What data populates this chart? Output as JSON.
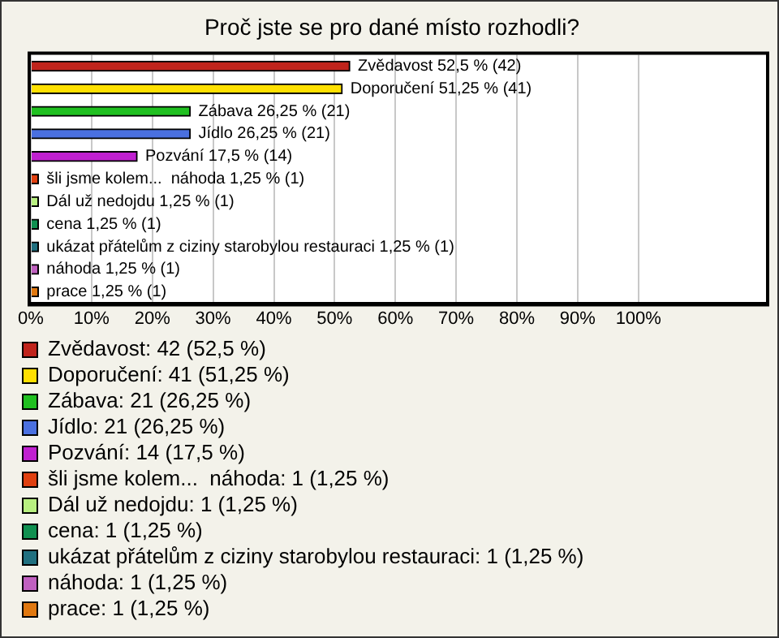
{
  "chart_data": {
    "type": "bar",
    "orientation": "horizontal",
    "stacked": true,
    "title": "Proč jste se pro dané místo rozhodli?",
    "categories": [
      null,
      null,
      null,
      null,
      null,
      null,
      null,
      null,
      null,
      null,
      null
    ],
    "series": [
      {
        "name": "Zvědavost: 42 (52,5 %)",
        "color": "#c0241c",
        "values": [
          52.5,
          null,
          null,
          null,
          null,
          null,
          null,
          null,
          null,
          null,
          null
        ],
        "value_labels": [
          "Zvědavost 52,5 % (42)",
          null,
          null,
          null,
          null,
          null,
          null,
          null,
          null,
          null,
          null
        ]
      },
      {
        "name": "Doporučení: 41 (51,25 %)",
        "color": "#ffe000",
        "values": [
          null,
          51.25,
          null,
          null,
          null,
          null,
          null,
          null,
          null,
          null,
          null
        ],
        "value_labels": [
          null,
          "Doporučení 51,25 % (41)",
          null,
          null,
          null,
          null,
          null,
          null,
          null,
          null,
          null
        ]
      },
      {
        "name": "Zábava: 21 (26,25 %)",
        "color": "#20c020",
        "values": [
          null,
          null,
          26.25,
          null,
          null,
          null,
          null,
          null,
          null,
          null,
          null
        ],
        "value_labels": [
          null,
          null,
          "Zábava 26,25 % (21)",
          null,
          null,
          null,
          null,
          null,
          null,
          null,
          null
        ]
      },
      {
        "name": "Jídlo: 21 (26,25 %)",
        "color": "#4a70e0",
        "values": [
          null,
          null,
          null,
          26.25,
          null,
          null,
          null,
          null,
          null,
          null,
          null
        ],
        "value_labels": [
          null,
          null,
          null,
          "Jídlo 26,25 % (21)",
          null,
          null,
          null,
          null,
          null,
          null,
          null
        ]
      },
      {
        "name": "Pozvání: 14 (17,5 %)",
        "color": "#c020d0",
        "values": [
          null,
          null,
          null,
          null,
          17.5,
          null,
          null,
          null,
          null,
          null,
          null
        ],
        "value_labels": [
          null,
          null,
          null,
          null,
          "Pozvání 17,5 % (14)",
          null,
          null,
          null,
          null,
          null,
          null
        ]
      },
      {
        "name": "šli jsme kolem...  náhoda: 1 (1,25 %)",
        "color": "#e04010",
        "values": [
          null,
          null,
          null,
          null,
          null,
          1.25,
          null,
          null,
          null,
          null,
          null
        ],
        "value_labels": [
          null,
          null,
          null,
          null,
          null,
          "šli jsme kolem...  náhoda 1,25 % (1)",
          null,
          null,
          null,
          null,
          null
        ]
      },
      {
        "name": "Dál už nedojdu: 1 (1,25 %)",
        "color": "#b8f080",
        "values": [
          null,
          null,
          null,
          null,
          null,
          null,
          1.25,
          null,
          null,
          null,
          null
        ],
        "value_labels": [
          null,
          null,
          null,
          null,
          null,
          null,
          "Dál už nedojdu 1,25 % (1)",
          null,
          null,
          null,
          null
        ]
      },
      {
        "name": "cena: 1 (1,25 %)",
        "color": "#109050",
        "values": [
          null,
          null,
          null,
          null,
          null,
          null,
          null,
          1.25,
          null,
          null,
          null
        ],
        "value_labels": [
          null,
          null,
          null,
          null,
          null,
          null,
          null,
          "cena 1,25 % (1)",
          null,
          null,
          null
        ]
      },
      {
        "name": "ukázat přátelům z ciziny starobylou restauraci: 1 (1,25 %)",
        "color": "#207080",
        "values": [
          null,
          null,
          null,
          null,
          null,
          null,
          null,
          null,
          1.25,
          null,
          null
        ],
        "value_labels": [
          null,
          null,
          null,
          null,
          null,
          null,
          null,
          null,
          "ukázat přátelům z ciziny starobylou restauraci 1,25 % (1)",
          null,
          null
        ]
      },
      {
        "name": "náhoda: 1 (1,25 %)",
        "color": "#c060c0",
        "values": [
          null,
          null,
          null,
          null,
          null,
          null,
          null,
          null,
          null,
          1.25,
          null
        ],
        "value_labels": [
          null,
          null,
          null,
          null,
          null,
          null,
          null,
          null,
          null,
          "náhoda 1,25 % (1)",
          null
        ]
      },
      {
        "name": "prace: 1 (1,25 %)",
        "color": "#e07810",
        "values": [
          null,
          null,
          null,
          null,
          null,
          null,
          null,
          null,
          null,
          null,
          1.25
        ],
        "value_labels": [
          null,
          null,
          null,
          null,
          null,
          null,
          null,
          null,
          null,
          null,
          "prace 1,25 % (1)"
        ]
      }
    ],
    "xlim": [
      0,
      121
    ],
    "xticks": [
      {
        "value": 0,
        "label": "0%"
      },
      {
        "value": 10,
        "label": "10%"
      },
      {
        "value": 20,
        "label": "20%"
      },
      {
        "value": 30,
        "label": "30%"
      },
      {
        "value": 40,
        "label": "40%"
      },
      {
        "value": 50,
        "label": "50%"
      },
      {
        "value": 60,
        "label": "60%"
      },
      {
        "value": 70,
        "label": "70%"
      },
      {
        "value": 80,
        "label": "80%"
      },
      {
        "value": 90,
        "label": "90%"
      },
      {
        "value": 100,
        "label": "100%"
      },
      {
        "value": 121,
        "label": null
      }
    ],
    "grid": "x",
    "legend": "bottom",
    "tick_labels": "x"
  }
}
